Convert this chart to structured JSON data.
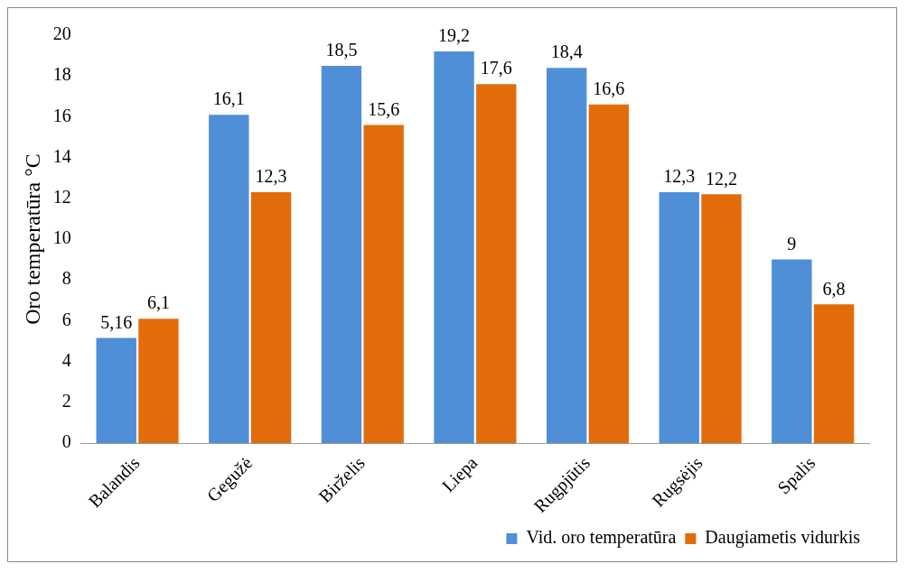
{
  "chart_data": {
    "type": "bar",
    "ylabel": "Oro temperatūra °C",
    "categories": [
      "Balandis",
      "Gegužė",
      "Birželis",
      "Liepa",
      "Rugpjūtis",
      "Rugsėjis",
      "Spalis"
    ],
    "series": [
      {
        "name": "Vid. oro temperatūra",
        "color": "#4f8fd8",
        "values": [
          5.16,
          16.1,
          18.5,
          19.2,
          18.4,
          12.3,
          9
        ],
        "value_labels": [
          "5,16",
          "16,1",
          "18,5",
          "19,2",
          "18,4",
          "12,3",
          "9"
        ]
      },
      {
        "name": "Daugiametis vidurkis",
        "color": "#e36c0a",
        "values": [
          6.1,
          12.3,
          15.6,
          17.6,
          16.6,
          12.2,
          6.8
        ],
        "value_labels": [
          "6,1",
          "12,3",
          "15,6",
          "17,6",
          "16,6",
          "12,2",
          "6,8"
        ]
      }
    ],
    "ylim": [
      0,
      20
    ],
    "yticks": [
      0,
      2,
      4,
      6,
      8,
      10,
      12,
      14,
      16,
      18,
      20
    ],
    "grid": false,
    "legend": "bottom right"
  }
}
